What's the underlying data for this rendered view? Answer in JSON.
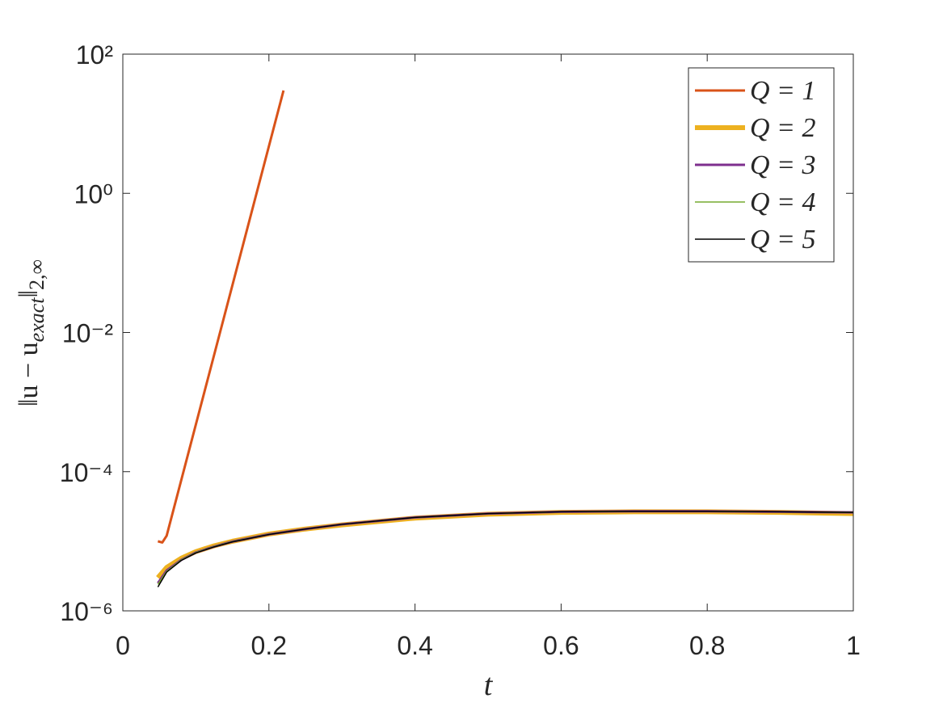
{
  "chart_data": {
    "type": "line",
    "xlabel": "t",
    "ylabel": [
      "‖u − u",
      "exact",
      "‖",
      "2,∞"
    ],
    "xlim": [
      0,
      1
    ],
    "xticks": [
      0,
      0.2,
      0.4,
      0.6,
      0.8,
      1
    ],
    "ylim": [
      1e-06,
      100
    ],
    "ylog": true,
    "yticks": [
      {
        "value": 1e-06,
        "label": "10⁻⁶"
      },
      {
        "value": 0.0001,
        "label": "10⁻⁴"
      },
      {
        "value": 0.01,
        "label": "10⁻²"
      },
      {
        "value": 1,
        "label": "10⁰"
      },
      {
        "value": 100,
        "label": "10²"
      }
    ],
    "legend": "top-right",
    "series": [
      {
        "name": "Q = 1",
        "color": "#d95319",
        "width": 3,
        "x": [
          0.048,
          0.054,
          0.06,
          0.22
        ],
        "values": [
          1e-05,
          9.6e-06,
          1.2e-05,
          30
        ]
      },
      {
        "name": "Q = 2",
        "color": "#edb120",
        "width": 6,
        "x": [
          0.048,
          0.06,
          0.08,
          0.1,
          0.125,
          0.15,
          0.2,
          0.25,
          0.3,
          0.4,
          0.5,
          0.6,
          0.7,
          0.8,
          0.9,
          1
        ],
        "values": [
          3e-06,
          4.2e-06,
          5.7e-06,
          7.1e-06,
          8.6e-06,
          1e-05,
          1.27e-05,
          1.5e-05,
          1.72e-05,
          2.15e-05,
          2.45e-05,
          2.6e-05,
          2.65e-05,
          2.65e-05,
          2.6e-05,
          2.5e-05
        ]
      },
      {
        "name": "Q = 3",
        "color": "#7e2f8e",
        "width": 3,
        "x": [
          0.048,
          0.06,
          0.08,
          0.1,
          0.125,
          0.15,
          0.2,
          0.25,
          0.3,
          0.4,
          0.5,
          0.6,
          0.7,
          0.8,
          0.9,
          1
        ],
        "values": [
          2.5e-06,
          3.8e-06,
          5.4e-06,
          6.9e-06,
          8.4e-06,
          9.9e-06,
          1.26e-05,
          1.5e-05,
          1.75e-05,
          2.2e-05,
          2.5e-05,
          2.65e-05,
          2.7e-05,
          2.7e-05,
          2.65e-05,
          2.6e-05
        ]
      },
      {
        "name": "Q = 4",
        "color": "#77ac30",
        "width": 1.5,
        "x": [
          0.048,
          0.06,
          0.08,
          0.1,
          0.125,
          0.15,
          0.2,
          0.25,
          0.3,
          0.4,
          0.5,
          0.6,
          0.7,
          0.8,
          0.9,
          1
        ],
        "values": [
          2.4e-06,
          3.7e-06,
          5.4e-06,
          6.9e-06,
          8.4e-06,
          9.9e-06,
          1.26e-05,
          1.5e-05,
          1.75e-05,
          2.2e-05,
          2.5e-05,
          2.65e-05,
          2.7e-05,
          2.7e-05,
          2.65e-05,
          2.6e-05
        ]
      },
      {
        "name": "Q = 5",
        "color": "#000000",
        "width": 1.5,
        "x": [
          0.048,
          0.06,
          0.08,
          0.1,
          0.125,
          0.15,
          0.2,
          0.25,
          0.3,
          0.4,
          0.5,
          0.6,
          0.7,
          0.8,
          0.9,
          1
        ],
        "values": [
          2.2e-06,
          3.6e-06,
          5.3e-06,
          6.8e-06,
          8.3e-06,
          9.8e-06,
          1.25e-05,
          1.5e-05,
          1.75e-05,
          2.2e-05,
          2.5e-05,
          2.65e-05,
          2.7e-05,
          2.7e-05,
          2.65e-05,
          2.6e-05
        ]
      }
    ]
  }
}
